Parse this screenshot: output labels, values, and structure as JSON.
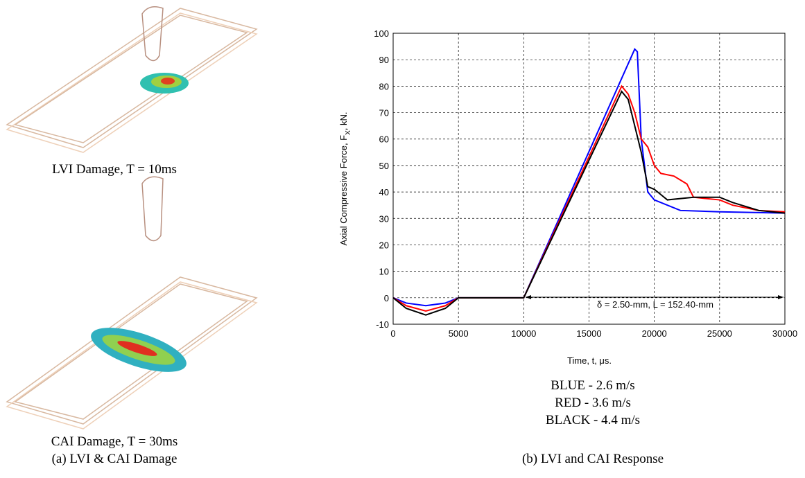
{
  "panel_a": {
    "captions": [
      "LVI Damage, T = 10ms",
      "CAI Damage, T = 30ms",
      "(a)  LVI & CAI Damage"
    ]
  },
  "chart_data": {
    "type": "line",
    "caption": "(b)  LVI and CAI Response",
    "xlabel": "Time, t, μs.",
    "ylabel": [
      "Axial Compressive Force, F",
      "X",
      ", kN."
    ],
    "annotation": "δ = 2.50-mm, L = 152.40-mm",
    "xlim": [
      0,
      30000
    ],
    "xticks": [
      0,
      5000,
      10000,
      15000,
      20000,
      25000,
      30000
    ],
    "ylim": [
      -10,
      100
    ],
    "yticks": [
      -10,
      0,
      10,
      20,
      30,
      40,
      50,
      60,
      70,
      80,
      90,
      100
    ],
    "grid": true,
    "series": [
      {
        "name": "BLUE - 2.6 m/s",
        "color": "#0000ff",
        "x": [
          0,
          1000,
          2500,
          4000,
          5000,
          10000,
          18500,
          18700,
          19000,
          19500,
          20000,
          22000,
          25000,
          30000
        ],
        "values": [
          0,
          -2,
          -3,
          -2,
          0,
          0,
          94,
          93,
          60,
          40,
          37,
          33,
          32.5,
          32
        ]
      },
      {
        "name": "RED - 3.6 m/s",
        "color": "#ff0000",
        "x": [
          0,
          1000,
          2500,
          4000,
          5000,
          10000,
          17500,
          18000,
          18500,
          19000,
          19500,
          20000,
          20500,
          21500,
          22500,
          23000,
          25000,
          26000,
          28000,
          30000
        ],
        "values": [
          0,
          -3,
          -5,
          -3,
          0,
          0,
          80,
          77,
          70,
          60,
          57,
          50,
          47,
          46,
          43,
          38,
          37,
          35,
          33,
          32.5
        ]
      },
      {
        "name": "BLACK - 4.4 m/s",
        "color": "#000000",
        "x": [
          0,
          1000,
          2500,
          4000,
          5000,
          10000,
          17500,
          18000,
          19000,
          19500,
          20000,
          20500,
          21000,
          23000,
          25000,
          26000,
          28000,
          30000
        ],
        "values": [
          0,
          -4,
          -6.5,
          -4,
          0,
          0,
          78,
          75,
          55,
          42,
          41,
          39,
          37,
          38,
          38,
          36,
          33,
          32
        ]
      }
    ]
  }
}
